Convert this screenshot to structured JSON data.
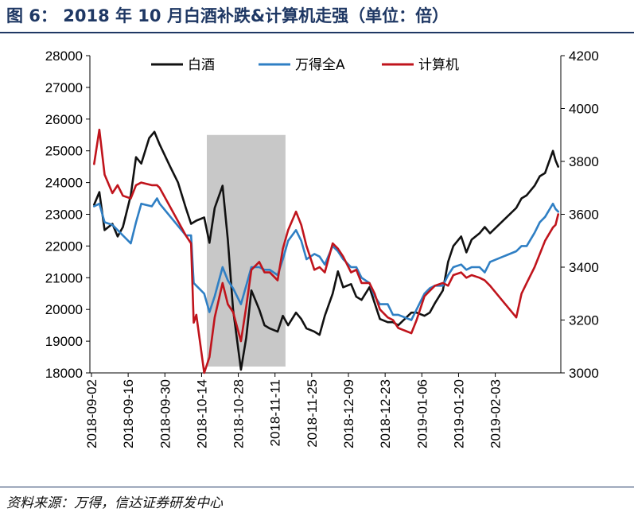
{
  "figure": {
    "title": "图 6：  2018 年 10 月白酒补跌&计算机走强（单位：倍）",
    "source": "资料来源：万得，信达证券研发中心"
  },
  "chart_data": {
    "type": "line",
    "x_ticks": [
      "2018-09-02",
      "2018-09-16",
      "2018-09-30",
      "2018-10-14",
      "2018-10-28",
      "2018-11-11",
      "2018-11-25",
      "2018-12-09",
      "2018-12-23",
      "2019-01-06",
      "2019-01-20",
      "2019-02-03"
    ],
    "y_left": {
      "range": [
        18000,
        28000
      ],
      "ticks": [
        18000,
        19000,
        20000,
        21000,
        22000,
        23000,
        24000,
        25000,
        26000,
        27000,
        28000
      ]
    },
    "y_right": {
      "range": [
        3000,
        4200
      ],
      "ticks": [
        3000,
        3200,
        3400,
        3600,
        3800,
        4000,
        4200
      ]
    },
    "legend_position": "top",
    "highlight": {
      "start": "2018-10-16",
      "end": "2018-11-15",
      "color": "#c8c8c8"
    },
    "series": [
      {
        "name": "白酒",
        "axis": "left",
        "color": "#111111",
        "points": [
          [
            "2018-09-03",
            23300
          ],
          [
            "2018-09-05",
            23700
          ],
          [
            "2018-09-07",
            22500
          ],
          [
            "2018-09-10",
            22700
          ],
          [
            "2018-09-12",
            22300
          ],
          [
            "2018-09-14",
            22600
          ],
          [
            "2018-09-17",
            23600
          ],
          [
            "2018-09-19",
            24800
          ],
          [
            "2018-09-21",
            24600
          ],
          [
            "2018-09-24",
            25400
          ],
          [
            "2018-09-26",
            25600
          ],
          [
            "2018-09-28",
            25200
          ],
          [
            "2018-10-02",
            24500
          ],
          [
            "2018-10-05",
            24000
          ],
          [
            "2018-10-08",
            23200
          ],
          [
            "2018-10-10",
            22700
          ],
          [
            "2018-10-12",
            22800
          ],
          [
            "2018-10-15",
            22900
          ],
          [
            "2018-10-17",
            22100
          ],
          [
            "2018-10-19",
            23200
          ],
          [
            "2018-10-22",
            23900
          ],
          [
            "2018-10-24",
            22200
          ],
          [
            "2018-10-26",
            20000
          ],
          [
            "2018-10-29",
            18100
          ],
          [
            "2018-10-31",
            19100
          ],
          [
            "2018-11-02",
            20600
          ],
          [
            "2018-11-05",
            20000
          ],
          [
            "2018-11-07",
            19500
          ],
          [
            "2018-11-09",
            19400
          ],
          [
            "2018-11-12",
            19300
          ],
          [
            "2018-11-14",
            19800
          ],
          [
            "2018-11-16",
            19500
          ],
          [
            "2018-11-19",
            19900
          ],
          [
            "2018-11-21",
            19700
          ],
          [
            "2018-11-23",
            19400
          ],
          [
            "2018-11-26",
            19300
          ],
          [
            "2018-11-28",
            19200
          ],
          [
            "2018-11-30",
            19800
          ],
          [
            "2018-12-03",
            20500
          ],
          [
            "2018-12-05",
            21200
          ],
          [
            "2018-12-07",
            20700
          ],
          [
            "2018-12-10",
            20800
          ],
          [
            "2018-12-12",
            20400
          ],
          [
            "2018-12-14",
            20300
          ],
          [
            "2018-12-17",
            20700
          ],
          [
            "2018-12-19",
            20200
          ],
          [
            "2018-12-21",
            19700
          ],
          [
            "2018-12-24",
            19600
          ],
          [
            "2018-12-26",
            19600
          ],
          [
            "2018-12-28",
            19500
          ],
          [
            "2019-01-02",
            19900
          ],
          [
            "2019-01-04",
            19900
          ],
          [
            "2019-01-07",
            19800
          ],
          [
            "2019-01-09",
            19900
          ],
          [
            "2019-01-11",
            20200
          ],
          [
            "2019-01-14",
            20600
          ],
          [
            "2019-01-16",
            21500
          ],
          [
            "2019-01-18",
            22000
          ],
          [
            "2019-01-21",
            22300
          ],
          [
            "2019-01-23",
            21800
          ],
          [
            "2019-01-25",
            22200
          ],
          [
            "2019-01-28",
            22400
          ],
          [
            "2019-01-30",
            22600
          ],
          [
            "2019-02-01",
            22400
          ],
          [
            "2019-02-11",
            23200
          ],
          [
            "2019-02-13",
            23500
          ],
          [
            "2019-02-15",
            23600
          ],
          [
            "2019-02-18",
            23900
          ],
          [
            "2019-02-20",
            24200
          ],
          [
            "2019-02-22",
            24300
          ],
          [
            "2019-02-25",
            25000
          ],
          [
            "2019-02-26",
            24700
          ],
          [
            "2019-02-27",
            24500
          ]
        ]
      },
      {
        "name": "万得全A",
        "axis": "right",
        "color": "#2f7fc4",
        "points": [
          [
            "2018-09-03",
            3630
          ],
          [
            "2018-09-05",
            3640
          ],
          [
            "2018-09-07",
            3570
          ],
          [
            "2018-09-10",
            3560
          ],
          [
            "2018-09-12",
            3540
          ],
          [
            "2018-09-14",
            3520
          ],
          [
            "2018-09-17",
            3490
          ],
          [
            "2018-09-19",
            3570
          ],
          [
            "2018-09-21",
            3640
          ],
          [
            "2018-09-25",
            3630
          ],
          [
            "2018-09-27",
            3660
          ],
          [
            "2018-09-28",
            3640
          ],
          [
            "2018-10-08",
            3520
          ],
          [
            "2018-10-10",
            3520
          ],
          [
            "2018-10-11",
            3340
          ],
          [
            "2018-10-12",
            3330
          ],
          [
            "2018-10-15",
            3300
          ],
          [
            "2018-10-17",
            3230
          ],
          [
            "2018-10-19",
            3290
          ],
          [
            "2018-10-22",
            3400
          ],
          [
            "2018-10-24",
            3350
          ],
          [
            "2018-10-26",
            3320
          ],
          [
            "2018-10-29",
            3260
          ],
          [
            "2018-10-31",
            3330
          ],
          [
            "2018-11-02",
            3400
          ],
          [
            "2018-11-05",
            3400
          ],
          [
            "2018-11-07",
            3390
          ],
          [
            "2018-11-09",
            3390
          ],
          [
            "2018-11-12",
            3370
          ],
          [
            "2018-11-14",
            3430
          ],
          [
            "2018-11-16",
            3500
          ],
          [
            "2018-11-19",
            3540
          ],
          [
            "2018-11-21",
            3500
          ],
          [
            "2018-11-23",
            3430
          ],
          [
            "2018-11-26",
            3450
          ],
          [
            "2018-11-28",
            3440
          ],
          [
            "2018-11-30",
            3410
          ],
          [
            "2018-12-03",
            3480
          ],
          [
            "2018-12-05",
            3460
          ],
          [
            "2018-12-07",
            3430
          ],
          [
            "2018-12-10",
            3400
          ],
          [
            "2018-12-12",
            3400
          ],
          [
            "2018-12-14",
            3360
          ],
          [
            "2018-12-17",
            3340
          ],
          [
            "2018-12-19",
            3290
          ],
          [
            "2018-12-21",
            3260
          ],
          [
            "2018-12-24",
            3260
          ],
          [
            "2018-12-26",
            3220
          ],
          [
            "2018-12-28",
            3220
          ],
          [
            "2019-01-02",
            3200
          ],
          [
            "2019-01-04",
            3240
          ],
          [
            "2019-01-07",
            3300
          ],
          [
            "2019-01-09",
            3320
          ],
          [
            "2019-01-11",
            3330
          ],
          [
            "2019-01-14",
            3330
          ],
          [
            "2019-01-16",
            3370
          ],
          [
            "2019-01-18",
            3400
          ],
          [
            "2019-01-21",
            3410
          ],
          [
            "2019-01-23",
            3390
          ],
          [
            "2019-01-25",
            3400
          ],
          [
            "2019-01-28",
            3400
          ],
          [
            "2019-01-30",
            3380
          ],
          [
            "2019-02-01",
            3420
          ],
          [
            "2019-02-11",
            3460
          ],
          [
            "2019-02-13",
            3480
          ],
          [
            "2019-02-15",
            3480
          ],
          [
            "2019-02-18",
            3530
          ],
          [
            "2019-02-20",
            3570
          ],
          [
            "2019-02-22",
            3590
          ],
          [
            "2019-02-25",
            3640
          ],
          [
            "2019-02-26",
            3620
          ],
          [
            "2019-02-27",
            3610
          ]
        ]
      },
      {
        "name": "计算机",
        "axis": "right",
        "color": "#c0141c",
        "points": [
          [
            "2018-09-03",
            3790
          ],
          [
            "2018-09-05",
            3920
          ],
          [
            "2018-09-07",
            3750
          ],
          [
            "2018-09-10",
            3680
          ],
          [
            "2018-09-12",
            3710
          ],
          [
            "2018-09-14",
            3670
          ],
          [
            "2018-09-17",
            3660
          ],
          [
            "2018-09-19",
            3710
          ],
          [
            "2018-09-21",
            3720
          ],
          [
            "2018-09-25",
            3710
          ],
          [
            "2018-09-27",
            3710
          ],
          [
            "2018-09-28",
            3700
          ],
          [
            "2018-10-08",
            3520
          ],
          [
            "2018-10-10",
            3490
          ],
          [
            "2018-10-11",
            3190
          ],
          [
            "2018-10-12",
            3220
          ],
          [
            "2018-10-15",
            3000
          ],
          [
            "2018-10-17",
            3060
          ],
          [
            "2018-10-19",
            3210
          ],
          [
            "2018-10-22",
            3340
          ],
          [
            "2018-10-24",
            3260
          ],
          [
            "2018-10-26",
            3230
          ],
          [
            "2018-10-29",
            3120
          ],
          [
            "2018-10-31",
            3250
          ],
          [
            "2018-11-02",
            3390
          ],
          [
            "2018-11-05",
            3420
          ],
          [
            "2018-11-07",
            3380
          ],
          [
            "2018-11-09",
            3380
          ],
          [
            "2018-11-12",
            3350
          ],
          [
            "2018-11-14",
            3470
          ],
          [
            "2018-11-16",
            3540
          ],
          [
            "2018-11-19",
            3610
          ],
          [
            "2018-11-21",
            3560
          ],
          [
            "2018-11-23",
            3480
          ],
          [
            "2018-11-26",
            3390
          ],
          [
            "2018-11-28",
            3400
          ],
          [
            "2018-11-30",
            3380
          ],
          [
            "2018-12-03",
            3490
          ],
          [
            "2018-12-05",
            3470
          ],
          [
            "2018-12-07",
            3440
          ],
          [
            "2018-12-10",
            3380
          ],
          [
            "2018-12-12",
            3390
          ],
          [
            "2018-12-14",
            3340
          ],
          [
            "2018-12-17",
            3340
          ],
          [
            "2018-12-19",
            3300
          ],
          [
            "2018-12-21",
            3240
          ],
          [
            "2018-12-24",
            3210
          ],
          [
            "2018-12-26",
            3200
          ],
          [
            "2018-12-28",
            3170
          ],
          [
            "2019-01-02",
            3150
          ],
          [
            "2019-01-04",
            3200
          ],
          [
            "2019-01-07",
            3290
          ],
          [
            "2019-01-09",
            3310
          ],
          [
            "2019-01-11",
            3330
          ],
          [
            "2019-01-14",
            3340
          ],
          [
            "2019-01-16",
            3330
          ],
          [
            "2019-01-18",
            3370
          ],
          [
            "2019-01-21",
            3380
          ],
          [
            "2019-01-23",
            3360
          ],
          [
            "2019-01-25",
            3370
          ],
          [
            "2019-01-28",
            3360
          ],
          [
            "2019-01-30",
            3350
          ],
          [
            "2019-02-01",
            3330
          ],
          [
            "2019-02-11",
            3210
          ],
          [
            "2019-02-13",
            3300
          ],
          [
            "2019-02-15",
            3340
          ],
          [
            "2019-02-18",
            3400
          ],
          [
            "2019-02-20",
            3450
          ],
          [
            "2019-02-22",
            3500
          ],
          [
            "2019-02-25",
            3550
          ],
          [
            "2019-02-26",
            3560
          ],
          [
            "2019-02-27",
            3600
          ]
        ]
      }
    ]
  }
}
